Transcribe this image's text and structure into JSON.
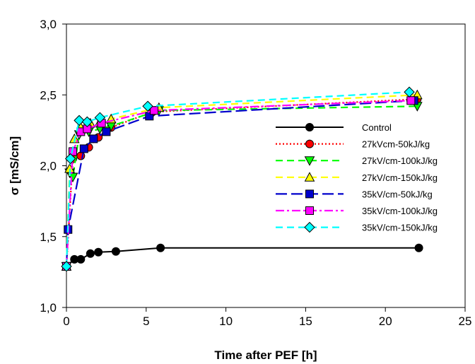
{
  "chart_data": {
    "type": "line",
    "title": "",
    "xlabel": "Time after PEF [h]",
    "ylabel": "σ [mS/cm]",
    "xlim": [
      0,
      25
    ],
    "ylim": [
      1.0,
      3.0
    ],
    "xticks": [
      0,
      5,
      10,
      15,
      20,
      25
    ],
    "yticks": [
      1.0,
      1.5,
      2.0,
      2.5,
      3.0
    ],
    "xtick_labels": [
      "0",
      "5",
      "10",
      "15",
      "20",
      "25"
    ],
    "ytick_labels": [
      "1,0",
      "1,5",
      "2,0",
      "2,5",
      "3,0"
    ],
    "grid": false,
    "legend_position": "center-right",
    "series": [
      {
        "name": "Control",
        "color": "#000000",
        "marker": "circle",
        "line": "solid",
        "x": [
          0,
          0.5,
          0.9,
          1.5,
          2.0,
          3.1,
          5.9,
          22.1
        ],
        "y": [
          1.29,
          1.34,
          1.34,
          1.38,
          1.39,
          1.395,
          1.42,
          1.42
        ]
      },
      {
        "name": "27kVcm-50kJ/kg",
        "color": "#ff0000",
        "marker": "circle",
        "line": "dotted",
        "x": [
          0,
          0.4,
          0.9,
          1.4,
          2.0,
          2.8,
          5.4,
          22.0
        ],
        "y": [
          1.29,
          2.05,
          2.07,
          2.13,
          2.2,
          2.27,
          2.38,
          2.47
        ]
      },
      {
        "name": "27kV/cm-100kJ/kg",
        "color": "#00ff00",
        "marker": "triangle-down",
        "line": "dashed",
        "x": [
          0,
          0.2,
          0.4,
          0.8,
          1.4,
          2.1,
          2.8,
          5.8,
          22.0
        ],
        "y": [
          1.29,
          1.95,
          1.92,
          2.22,
          2.24,
          2.26,
          2.28,
          2.39,
          2.42
        ]
      },
      {
        "name": "27kV/cm-150kJ/kg",
        "color": "#ffff00",
        "marker": "triangle-up",
        "line": "dashed",
        "x": [
          0,
          0.2,
          0.5,
          0.9,
          1.5,
          2.1,
          2.8,
          5.8,
          22.0
        ],
        "y": [
          1.29,
          1.98,
          2.19,
          2.27,
          2.3,
          2.31,
          2.33,
          2.41,
          2.5
        ]
      },
      {
        "name": "35kV/cm-50kJ/kg",
        "color": "#0000cc",
        "marker": "square",
        "line": "long-dash",
        "x": [
          0,
          0.1,
          1.1,
          1.7,
          2.5,
          5.2,
          21.8
        ],
        "y": [
          1.29,
          1.55,
          2.12,
          2.19,
          2.24,
          2.35,
          2.46
        ]
      },
      {
        "name": "35kV/cm-100kJ/kg",
        "color": "#ff00ff",
        "marker": "square",
        "line": "dash-dot",
        "x": [
          0,
          0.4,
          0.9,
          1.3,
          2.2,
          5.5,
          21.6
        ],
        "y": [
          1.29,
          2.1,
          2.24,
          2.26,
          2.3,
          2.39,
          2.46
        ]
      },
      {
        "name": "35kV/cm-150kJ/kg",
        "color": "#00ffff",
        "marker": "diamond",
        "line": "dashed",
        "x": [
          0,
          0.25,
          0.8,
          1.3,
          2.1,
          5.1,
          21.5
        ],
        "y": [
          1.29,
          2.05,
          2.32,
          2.31,
          2.34,
          2.42,
          2.52
        ]
      }
    ]
  }
}
